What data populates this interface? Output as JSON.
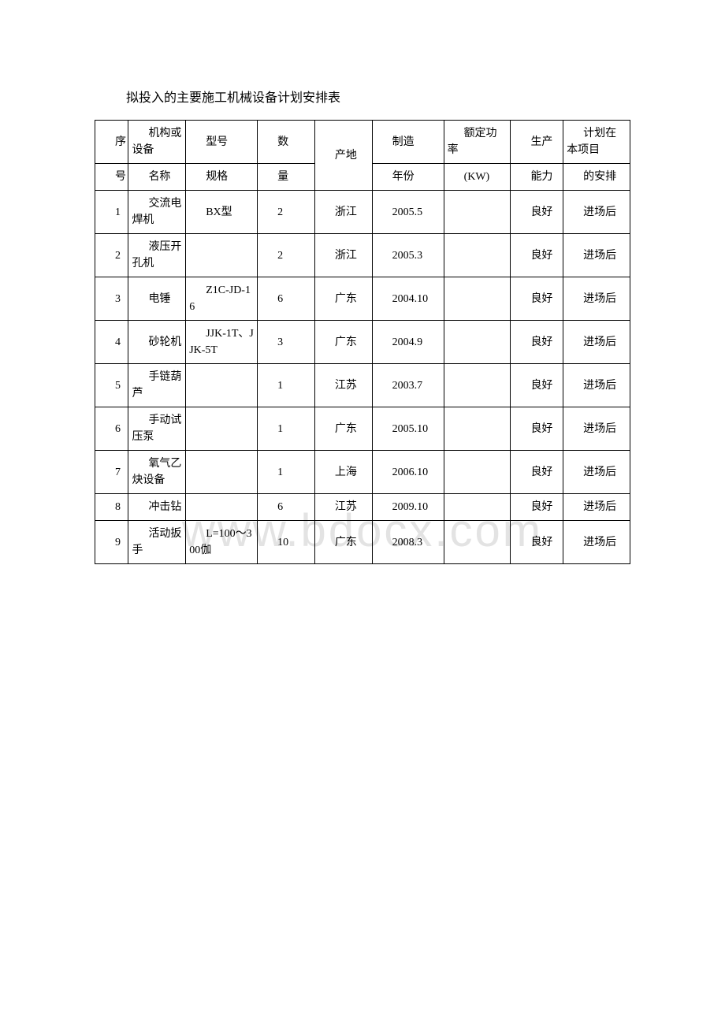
{
  "title": "拟投入的主要施工机械设备计划安排表",
  "watermark": "www.bdocx.com",
  "header": {
    "row1": {
      "c1": "序",
      "c2": "机构或设备",
      "c3": "型号",
      "c4": "数",
      "c5": "产地",
      "c6": "制造",
      "c7": "额定功率",
      "c8": "生产",
      "c9": "计划在本项目"
    },
    "row2": {
      "c1": "号",
      "c2": "名称",
      "c3": "规格",
      "c4": "量",
      "c6": "年份",
      "c7": "(KW)",
      "c8": "能力",
      "c9": "的安排"
    }
  },
  "rows": [
    {
      "c1": "1",
      "c2": "交流电焊机",
      "c3": "BX型",
      "c4": "2",
      "c5": "浙江",
      "c6": "2005.5",
      "c7": "",
      "c8": "良好",
      "c9": "进场后"
    },
    {
      "c1": "2",
      "c2": "液压开孔机",
      "c3": "",
      "c4": "2",
      "c5": "浙江",
      "c6": "2005.3",
      "c7": "",
      "c8": "良好",
      "c9": "进场后"
    },
    {
      "c1": "3",
      "c2": "电锤",
      "c3": "Z1C-JD-16",
      "c4": "6",
      "c5": "广东",
      "c6": "2004.10",
      "c7": "",
      "c8": "良好",
      "c9": "进场后"
    },
    {
      "c1": "4",
      "c2": "砂轮机",
      "c3": "JJK-1T、JJK-5T",
      "c4": "3",
      "c5": "广东",
      "c6": "2004.9",
      "c7": "",
      "c8": "良好",
      "c9": "进场后"
    },
    {
      "c1": "5",
      "c2": "手链葫芦",
      "c3": "",
      "c4": "1",
      "c5": "江苏",
      "c6": "2003.7",
      "c7": "",
      "c8": "良好",
      "c9": "进场后"
    },
    {
      "c1": "6",
      "c2": "手动试压泵",
      "c3": "",
      "c4": "1",
      "c5": "广东",
      "c6": "2005.10",
      "c7": "",
      "c8": "良好",
      "c9": "进场后"
    },
    {
      "c1": "7",
      "c2": "氧气乙炔设备",
      "c3": "",
      "c4": "1",
      "c5": "上海",
      "c6": "2006.10",
      "c7": "",
      "c8": "良好",
      "c9": "进场后"
    },
    {
      "c1": "8",
      "c2": "冲击钻",
      "c3": "",
      "c4": "6",
      "c5": "江苏",
      "c6": "2009.10",
      "c7": "",
      "c8": "良好",
      "c9": "进场后"
    },
    {
      "c1": "9",
      "c2": "活动扳手",
      "c3": "L=100～300伽",
      "c4": "10",
      "c5": "广东",
      "c6": "2008.3",
      "c7": "",
      "c8": "良好",
      "c9": "进场后"
    }
  ]
}
